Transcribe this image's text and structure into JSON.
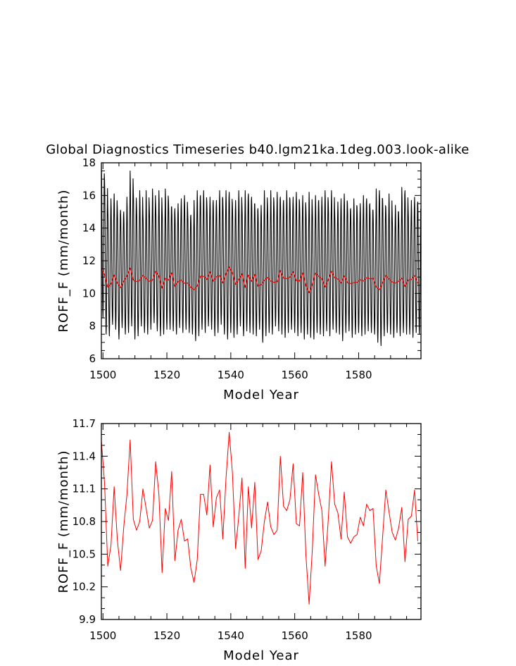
{
  "figure": {
    "title": "Global Diagnostics Timeseries b40.lgm21ka.1deg.003.look-alike"
  },
  "chart_data": [
    {
      "type": "line",
      "xlabel": "Model Year",
      "ylabel": "ROFF_F (mm/month)",
      "xlim": [
        1499.5,
        1599.5
      ],
      "ylim": [
        6,
        18
      ],
      "xticks": [
        "1500",
        "1520",
        "1540",
        "1560",
        "1580"
      ],
      "yticks": [
        "6",
        "8",
        "10",
        "12",
        "14",
        "16",
        "18"
      ],
      "grid": false,
      "legend": "none",
      "series": [
        {
          "color": "#000000",
          "description": "monthly values",
          "start_year": 1499.5,
          "step": 0.0833333,
          "annual_max": [
            17.8,
            16.9,
            15.3,
            15.8,
            16.1,
            15.2,
            15.1,
            15.0,
            15.9,
            17.5,
            16.3,
            15.4,
            16.3,
            15.0,
            16.3,
            15.3,
            16.4,
            15.4,
            16.3,
            15.2,
            16.4,
            15.7,
            15.3,
            15.2,
            15.5,
            15.8,
            16.0,
            15.1,
            14.8,
            15.7,
            16.3,
            16.0,
            16.3,
            15.6,
            15.9,
            15.7,
            15.7,
            16.3,
            15.8,
            16.3,
            16.2,
            15.5,
            15.7,
            16.3,
            15.4,
            16.3,
            16.1,
            15.9,
            15.5,
            15.2,
            15.4,
            16.3,
            15.4,
            16.3,
            15.6,
            16.2,
            15.9,
            15.7,
            16.3,
            15.8,
            15.9,
            16.2,
            15.6,
            16.0,
            15.3,
            16.2,
            15.3,
            16.0,
            15.7,
            15.9,
            16.3,
            15.6,
            16.3,
            15.1,
            15.6,
            15.8,
            16.1,
            15.5,
            15.2,
            15.8,
            15.3,
            15.5,
            16.0,
            15.8,
            15.5,
            15.1,
            16.4,
            16.3,
            15.8,
            15.3,
            16.1,
            14.8,
            15.4,
            15.0,
            16.5,
            16.3,
            15.2,
            15.7,
            15.9,
            15.6
          ],
          "annual_min": [
            8.5,
            7.5,
            7.4,
            8.1,
            7.8,
            7.2,
            7.9,
            7.5,
            7.6,
            8.0,
            7.2,
            7.4,
            8.0,
            7.6,
            7.5,
            7.8,
            8.2,
            7.7,
            7.4,
            7.5,
            7.8,
            7.8,
            7.7,
            7.5,
            7.9,
            7.6,
            7.8,
            7.6,
            7.5,
            7.1,
            7.4,
            7.8,
            7.6,
            8.0,
            7.8,
            7.4,
            7.6,
            8.1,
            7.5,
            7.2,
            7.6,
            7.3,
            7.5,
            8.0,
            7.4,
            7.7,
            7.6,
            7.5,
            7.4,
            7.8,
            7.0,
            7.4,
            7.6,
            7.5,
            8.0,
            7.7,
            7.5,
            7.3,
            7.6,
            7.8,
            7.6,
            7.4,
            7.6,
            7.2,
            7.5,
            7.3,
            7.2,
            7.6,
            7.5,
            7.4,
            7.7,
            7.4,
            7.8,
            7.6,
            7.5,
            7.1,
            7.6,
            7.7,
            7.3,
            7.5,
            7.6,
            7.4,
            7.5,
            7.7,
            7.6,
            7.5,
            7.0,
            6.8,
            7.4,
            7.6,
            7.5,
            7.3,
            7.6,
            7.4,
            7.6,
            7.5,
            7.5,
            7.3,
            7.6,
            7.5
          ]
        },
        {
          "color": "#ff0000",
          "description": "annual means",
          "ref": "annual"
        }
      ]
    },
    {
      "type": "line",
      "xlabel": "Model Year",
      "ylabel": "ROFF_F (mm/month)",
      "xlim": [
        1499.5,
        1599.5
      ],
      "ylim": [
        9.9,
        11.7
      ],
      "xticks": [
        "1500",
        "1520",
        "1540",
        "1560",
        "1580"
      ],
      "yticks": [
        "9.9",
        "10.2",
        "10.5",
        "10.8",
        "11.1",
        "11.4",
        "11.7"
      ],
      "grid": false,
      "legend": "none",
      "series": [
        {
          "color": "#ff0000",
          "x": [
            1499.5,
            1500.5,
            1501.5,
            1502.5,
            1503.5,
            1504.5,
            1505.5,
            1506.5,
            1507.5,
            1508.5,
            1509.5,
            1510.5,
            1511.5,
            1512.5,
            1513.5,
            1514.5,
            1515.5,
            1516.5,
            1517.5,
            1518.5,
            1519.5,
            1520.5,
            1521.5,
            1522.5,
            1523.5,
            1524.5,
            1525.5,
            1526.5,
            1527.5,
            1528.5,
            1529.5,
            1530.5,
            1531.5,
            1532.5,
            1533.5,
            1534.5,
            1535.5,
            1536.5,
            1537.5,
            1538.5,
            1539.5,
            1540.5,
            1541.5,
            1542.5,
            1543.5,
            1544.5,
            1545.5,
            1546.5,
            1547.5,
            1548.5,
            1549.5,
            1550.5,
            1551.5,
            1552.5,
            1553.5,
            1554.5,
            1555.5,
            1556.5,
            1557.5,
            1558.5,
            1559.5,
            1560.5,
            1561.5,
            1562.5,
            1563.5,
            1564.5,
            1565.5,
            1566.5,
            1567.5,
            1568.5,
            1569.5,
            1570.5,
            1571.5,
            1572.5,
            1573.5,
            1574.5,
            1575.5,
            1576.5,
            1577.5,
            1578.5,
            1579.5,
            1580.5,
            1581.5,
            1582.5,
            1583.5,
            1584.5,
            1585.5,
            1586.5,
            1587.5,
            1588.5,
            1589.5,
            1590.5,
            1591.5,
            1592.5,
            1593.5,
            1594.5,
            1595.5,
            1596.5,
            1597.5,
            1598.5
          ],
          "values": [
            11.54,
            11.15,
            10.39,
            10.58,
            11.12,
            10.63,
            10.35,
            10.75,
            11.05,
            11.55,
            10.82,
            10.72,
            10.8,
            11.1,
            10.92,
            10.74,
            10.81,
            11.35,
            11.05,
            10.33,
            10.92,
            10.81,
            11.26,
            10.44,
            10.72,
            10.82,
            10.62,
            10.64,
            10.37,
            10.24,
            10.45,
            11.05,
            11.05,
            10.86,
            11.32,
            10.75,
            11.02,
            11.09,
            10.64,
            11.2,
            11.62,
            11.25,
            10.55,
            10.85,
            11.2,
            10.37,
            11.12,
            10.74,
            11.16,
            10.45,
            10.53,
            10.8,
            10.98,
            10.75,
            10.68,
            10.72,
            11.4,
            10.94,
            10.9,
            11.0,
            11.33,
            10.78,
            10.76,
            11.25,
            10.49,
            10.04,
            10.54,
            11.23,
            11.05,
            10.9,
            10.39,
            10.82,
            11.35,
            10.96,
            10.88,
            10.64,
            11.07,
            10.66,
            10.6,
            10.66,
            10.68,
            10.84,
            10.76,
            10.96,
            10.9,
            10.92,
            10.39,
            10.23,
            10.66,
            11.09,
            10.89,
            10.7,
            10.63,
            10.74,
            10.93,
            10.43,
            10.82,
            10.85,
            11.09,
            10.62
          ]
        }
      ]
    }
  ]
}
